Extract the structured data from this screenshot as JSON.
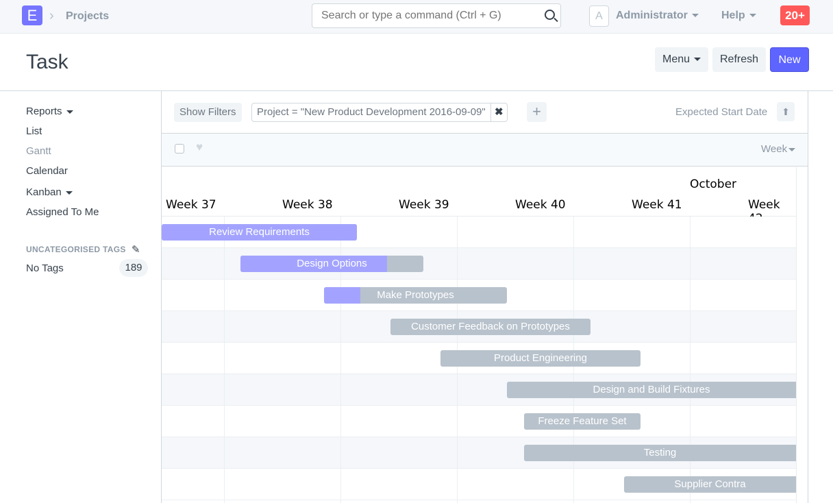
{
  "navbar": {
    "logo": "E",
    "breadcrumb": "Projects",
    "search_placeholder": "Search or type a command (Ctrl + G)",
    "avatar": "A",
    "user": "Administrator",
    "help": "Help",
    "notifications": "20+"
  },
  "page": {
    "title": "Task",
    "menu": "Menu",
    "refresh": "Refresh",
    "new": "New",
    "accent": "#5e64ff"
  },
  "sidebar": {
    "items": [
      {
        "label": "Reports"
      },
      {
        "label": "List"
      },
      {
        "label": "Gantt"
      },
      {
        "label": "Calendar"
      },
      {
        "label": "Kanban"
      },
      {
        "label": "Assigned To Me"
      }
    ],
    "tags_heading": "UNCATEGORISED TAGS",
    "tag_label": "No Tags",
    "tag_count": "189"
  },
  "filters": {
    "show_filters": "Show Filters",
    "filter": "Project = \"New Product Development 2016-09-09\"",
    "sort_label": "Expected Start Date"
  },
  "list": {
    "view_mode": "Week"
  },
  "gantt": {
    "month": "October",
    "weeks": [
      "Week 37",
      "Week 38",
      "Week 39",
      "Week 40",
      "Week 41",
      "Week 42"
    ],
    "tasks": [
      {
        "name": "Review Requirements",
        "progress": 100
      },
      {
        "name": "Design Options",
        "progress": 80
      },
      {
        "name": "Make Prototypes",
        "progress": 20
      },
      {
        "name": "Customer Feedback on Prototypes",
        "progress": 0
      },
      {
        "name": "Product Engineering",
        "progress": 0
      },
      {
        "name": "Design and Build Fixtures",
        "progress": 0
      },
      {
        "name": "Freeze Feature Set",
        "progress": 0
      },
      {
        "name": "Testing",
        "progress": 0
      },
      {
        "name": "Supplier Contra",
        "progress": 0
      }
    ]
  }
}
